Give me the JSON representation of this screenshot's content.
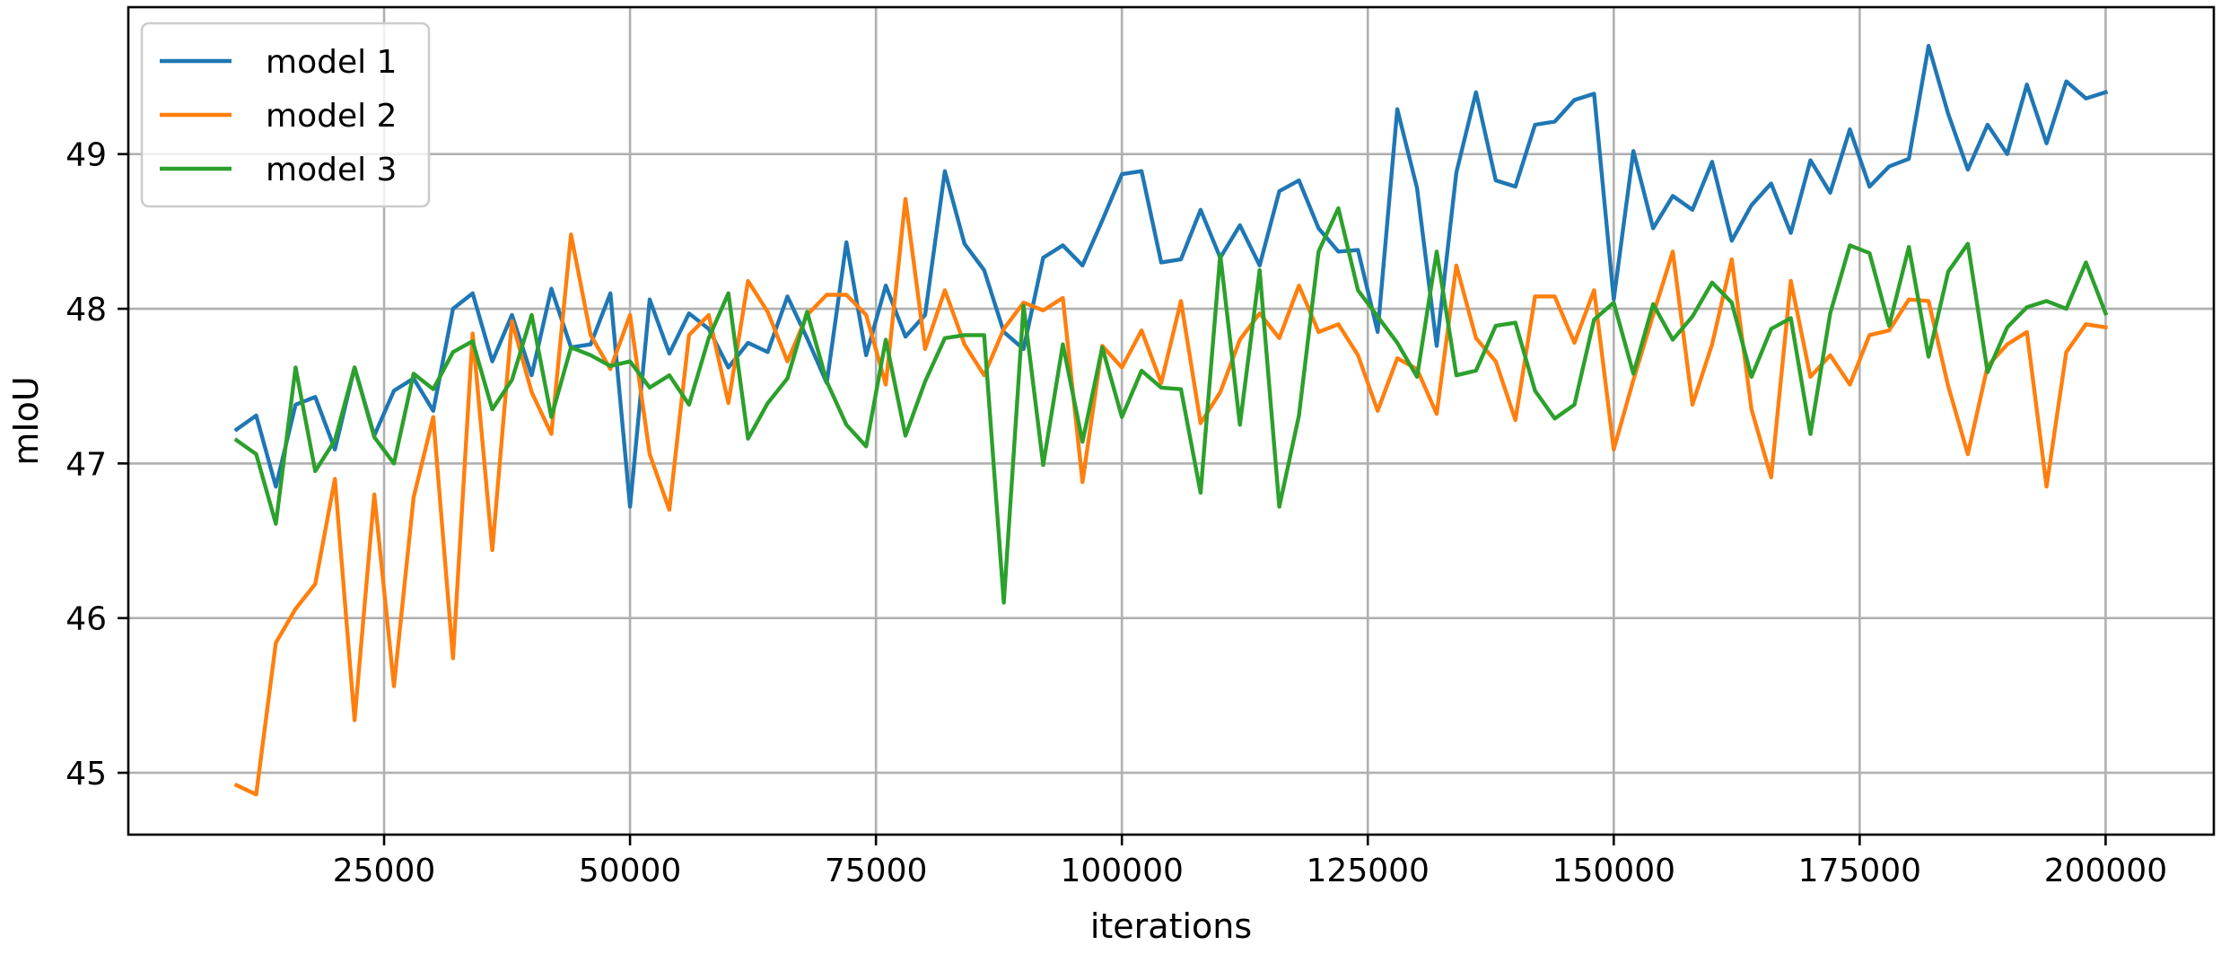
{
  "chart_data": {
    "type": "line",
    "xlabel": "iterations",
    "ylabel": "mIoU",
    "xlim": [
      -1000,
      211000
    ],
    "ylim": [
      44.6,
      49.95
    ],
    "x_ticks": [
      25000,
      50000,
      75000,
      100000,
      125000,
      150000,
      175000,
      200000
    ],
    "y_ticks": [
      45,
      46,
      47,
      48,
      49
    ],
    "x_tick_labels": [
      "25000",
      "50000",
      "75000",
      "100000",
      "125000",
      "150000",
      "175000",
      "200000"
    ],
    "y_tick_labels": [
      "45",
      "46",
      "47",
      "48",
      "49"
    ],
    "grid": true,
    "legend_position": "top-left",
    "x": [
      10000,
      12000,
      14000,
      16000,
      18000,
      20000,
      22000,
      24000,
      26000,
      28000,
      30000,
      32000,
      34000,
      36000,
      38000,
      40000,
      42000,
      44000,
      46000,
      48000,
      50000,
      52000,
      54000,
      56000,
      58000,
      60000,
      62000,
      64000,
      66000,
      68000,
      70000,
      72000,
      74000,
      76000,
      78000,
      80000,
      82000,
      84000,
      86000,
      88000,
      90000,
      92000,
      94000,
      96000,
      98000,
      100000,
      102000,
      104000,
      106000,
      108000,
      110000,
      112000,
      114000,
      116000,
      118000,
      120000,
      122000,
      124000,
      126000,
      128000,
      130000,
      132000,
      134000,
      136000,
      138000,
      140000,
      142000,
      144000,
      146000,
      148000,
      150000,
      152000,
      154000,
      156000,
      158000,
      160000,
      162000,
      164000,
      166000,
      168000,
      170000,
      172000,
      174000,
      176000,
      178000,
      180000,
      182000,
      184000,
      186000,
      188000,
      190000,
      192000,
      194000,
      196000,
      198000,
      200000
    ],
    "series": [
      {
        "name": "model 1",
        "color": "#1f77b4",
        "values": [
          47.22,
          47.31,
          46.85,
          47.38,
          47.43,
          47.09,
          47.62,
          47.18,
          47.47,
          47.55,
          47.34,
          48.0,
          48.1,
          47.66,
          47.96,
          47.57,
          48.13,
          47.75,
          47.77,
          48.1,
          46.72,
          48.06,
          47.71,
          47.97,
          47.87,
          47.62,
          47.78,
          47.72,
          48.08,
          47.81,
          47.52,
          48.43,
          47.7,
          48.15,
          47.82,
          47.96,
          48.89,
          48.42,
          48.25,
          47.85,
          47.74,
          48.33,
          48.41,
          48.28,
          48.57,
          48.87,
          48.89,
          48.3,
          48.32,
          48.64,
          48.33,
          48.54,
          48.28,
          48.76,
          48.83,
          48.52,
          48.37,
          48.38,
          47.85,
          49.29,
          48.78,
          47.76,
          48.88,
          49.4,
          48.83,
          48.79,
          49.19,
          49.21,
          49.35,
          49.39,
          48.06,
          49.02,
          48.52,
          48.73,
          48.64,
          48.95,
          48.44,
          48.67,
          48.81,
          48.49,
          48.96,
          48.75,
          49.16,
          48.79,
          48.92,
          48.97,
          49.7,
          49.26,
          48.9,
          49.19,
          49.0,
          49.45,
          49.07,
          49.47,
          49.36,
          49.4
        ]
      },
      {
        "name": "model 2",
        "color": "#ff7f0e",
        "values": [
          44.92,
          44.86,
          45.84,
          46.06,
          46.22,
          46.9,
          45.34,
          46.8,
          45.56,
          46.78,
          47.3,
          45.74,
          47.84,
          46.44,
          47.92,
          47.46,
          47.19,
          48.48,
          47.83,
          47.61,
          47.96,
          47.06,
          46.7,
          47.83,
          47.96,
          47.39,
          48.18,
          47.98,
          47.66,
          47.96,
          48.09,
          48.09,
          47.96,
          47.51,
          48.71,
          47.74,
          48.12,
          47.77,
          47.57,
          47.87,
          48.04,
          47.99,
          48.07,
          46.88,
          47.76,
          47.62,
          47.86,
          47.52,
          48.05,
          47.26,
          47.46,
          47.8,
          47.97,
          47.81,
          48.15,
          47.85,
          47.9,
          47.7,
          47.34,
          47.68,
          47.61,
          47.32,
          48.28,
          47.81,
          47.66,
          47.28,
          48.08,
          48.08,
          47.78,
          48.12,
          47.09,
          47.54,
          47.96,
          48.37,
          47.38,
          47.77,
          48.32,
          47.35,
          46.91,
          48.18,
          47.56,
          47.7,
          47.51,
          47.83,
          47.86,
          48.06,
          48.05,
          47.5,
          47.06,
          47.63,
          47.77,
          47.85,
          46.85,
          47.72,
          47.9,
          47.88
        ]
      },
      {
        "name": "model 3",
        "color": "#2ca02c",
        "values": [
          47.15,
          47.06,
          46.61,
          47.62,
          46.95,
          47.15,
          47.62,
          47.17,
          47.0,
          47.58,
          47.48,
          47.72,
          47.79,
          47.35,
          47.54,
          47.96,
          47.3,
          47.75,
          47.7,
          47.63,
          47.66,
          47.49,
          47.57,
          47.38,
          47.81,
          48.1,
          47.16,
          47.39,
          47.55,
          47.98,
          47.53,
          47.25,
          47.11,
          47.8,
          47.18,
          47.53,
          47.81,
          47.83,
          47.83,
          46.1,
          48.02,
          46.99,
          47.77,
          47.14,
          47.75,
          47.3,
          47.6,
          47.49,
          47.48,
          46.81,
          48.35,
          47.25,
          48.25,
          46.72,
          47.31,
          48.37,
          48.65,
          48.12,
          47.95,
          47.78,
          47.56,
          48.37,
          47.57,
          47.6,
          47.89,
          47.91,
          47.47,
          47.29,
          47.38,
          47.93,
          48.04,
          47.58,
          48.03,
          47.8,
          47.95,
          48.17,
          48.04,
          47.56,
          47.87,
          47.94,
          47.19,
          47.97,
          48.41,
          48.36,
          47.89,
          48.4,
          47.69,
          48.24,
          48.42,
          47.59,
          47.88,
          48.01,
          48.05,
          48.0,
          48.3,
          47.97
        ]
      }
    ]
  }
}
